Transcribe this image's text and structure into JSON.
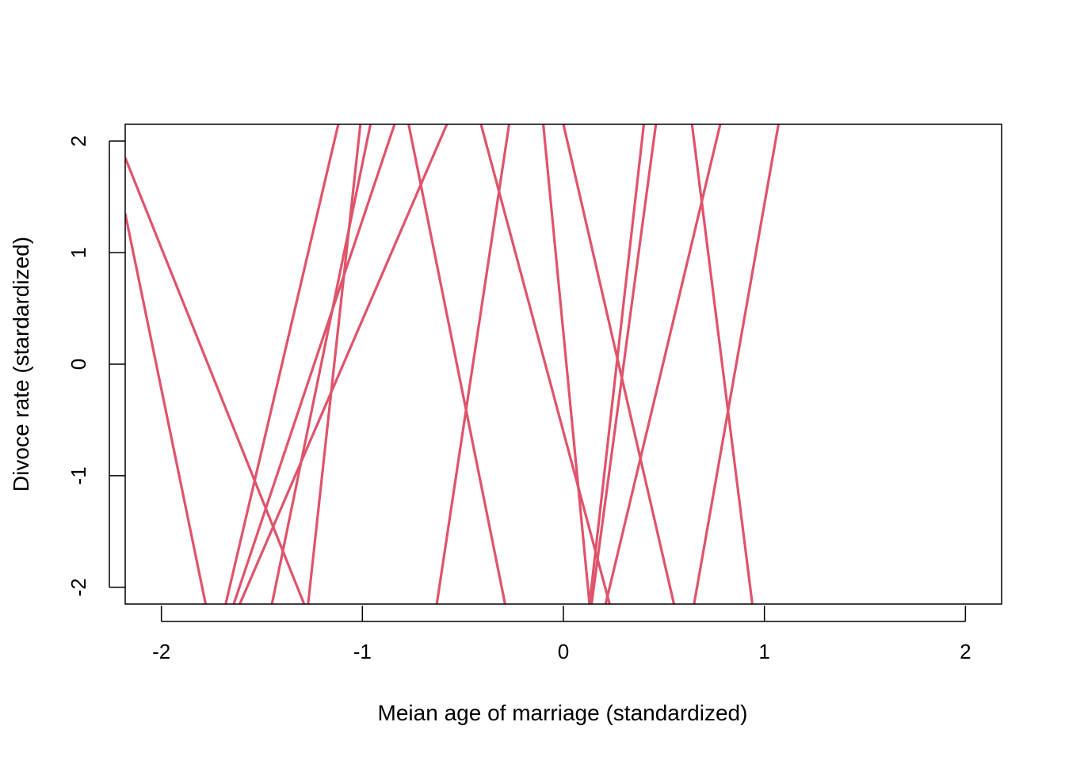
{
  "chart_data": {
    "type": "line",
    "title": "",
    "xlabel": "Meian age of marriage (standardized)",
    "ylabel": "Divoce rate (stardardized)",
    "xlim": [
      -2.18,
      2.18
    ],
    "ylim": [
      -2.15,
      2.15
    ],
    "xticks": [
      -2,
      -1,
      0,
      1,
      2
    ],
    "yticks": [
      -2,
      -1,
      0,
      1,
      2
    ],
    "xtick_labels": [
      "-2",
      "-1",
      "0",
      "1",
      "2"
    ],
    "ytick_labels": [
      "-2",
      "-1",
      "0",
      "1",
      "2"
    ],
    "grid": false,
    "legend": "none",
    "line_color": "#DF536B",
    "series": [
      {
        "x": [
          -2.18,
          -1.29
        ],
        "y": [
          1.85,
          -2.15
        ]
      },
      {
        "x": [
          -2.18,
          -1.78
        ],
        "y": [
          1.35,
          -2.15
        ]
      },
      {
        "x": [
          -1.68,
          -1.12
        ],
        "y": [
          -2.15,
          2.15
        ]
      },
      {
        "x": [
          -1.64,
          -0.84
        ],
        "y": [
          -2.15,
          2.15
        ]
      },
      {
        "x": [
          -1.61,
          -0.58
        ],
        "y": [
          -2.15,
          2.15
        ]
      },
      {
        "x": [
          -1.45,
          -0.96
        ],
        "y": [
          -2.15,
          2.15
        ]
      },
      {
        "x": [
          -1.27,
          -1.01
        ],
        "y": [
          -2.15,
          2.15
        ]
      },
      {
        "x": [
          -0.77,
          -0.29
        ],
        "y": [
          2.15,
          -2.15
        ]
      },
      {
        "x": [
          -0.63,
          -0.27
        ],
        "y": [
          -2.15,
          2.15
        ]
      },
      {
        "x": [
          -0.41,
          0.23
        ],
        "y": [
          2.15,
          -2.15
        ]
      },
      {
        "x": [
          -0.1,
          0.13
        ],
        "y": [
          2.15,
          -2.15
        ]
      },
      {
        "x": [
          0.0,
          0.55
        ],
        "y": [
          2.15,
          -2.15
        ]
      },
      {
        "x": [
          0.13,
          0.4
        ],
        "y": [
          -2.15,
          2.15
        ]
      },
      {
        "x": [
          0.14,
          0.46
        ],
        "y": [
          -2.15,
          2.15
        ]
      },
      {
        "x": [
          0.21,
          0.78
        ],
        "y": [
          -2.15,
          2.15
        ]
      },
      {
        "x": [
          0.64,
          0.94
        ],
        "y": [
          2.15,
          -2.15
        ]
      },
      {
        "x": [
          0.65,
          1.07
        ],
        "y": [
          -2.15,
          2.15
        ]
      }
    ]
  }
}
